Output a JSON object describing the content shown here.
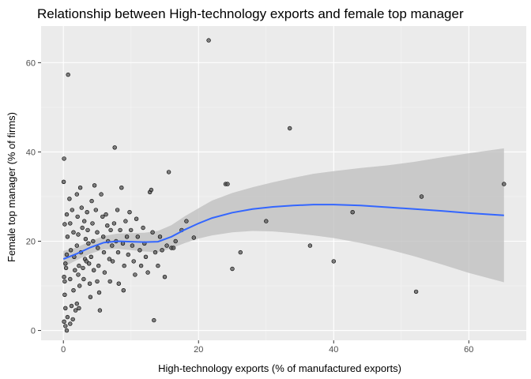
{
  "chart_data": {
    "type": "scatter",
    "title": "Relationship between  High-technology exports and female top manager",
    "xlabel": "High-technology exports (% of manufactured exports)",
    "ylabel": "Female top manager (% of firms)",
    "xlim": [
      -3.3,
      68.5
    ],
    "ylim": [
      -2.2,
      68.2
    ],
    "x_ticks": [
      0,
      20,
      40,
      60
    ],
    "y_ticks": [
      0,
      20,
      40,
      60
    ],
    "grid": true,
    "colors": {
      "panel": "#ebebeb",
      "grid_major": "#ffffff",
      "grid_minor": "#f5f5f5",
      "point_fill": "#595959",
      "point_stroke": "#000000",
      "smooth_line": "#3366ff",
      "ribbon": "#bdbdbd"
    },
    "points": [
      {
        "x": 0.05,
        "y": 33.3
      },
      {
        "x": 0.1,
        "y": 38.5
      },
      {
        "x": 0.2,
        "y": 23.8
      },
      {
        "x": 0.3,
        "y": 15.0
      },
      {
        "x": 0.1,
        "y": 12.0
      },
      {
        "x": 0.2,
        "y": 11.0
      },
      {
        "x": 0.2,
        "y": 8.0
      },
      {
        "x": 0.3,
        "y": 5.0
      },
      {
        "x": 0.1,
        "y": 2.0
      },
      {
        "x": 0.3,
        "y": 1.0
      },
      {
        "x": 0.5,
        "y": 0.0
      },
      {
        "x": 0.6,
        "y": 3.0
      },
      {
        "x": 0.4,
        "y": 14.0
      },
      {
        "x": 0.5,
        "y": 17.0
      },
      {
        "x": 0.6,
        "y": 21.0
      },
      {
        "x": 0.5,
        "y": 26.0
      },
      {
        "x": 0.7,
        "y": 57.3
      },
      {
        "x": 0.9,
        "y": 29.5
      },
      {
        "x": 1.0,
        "y": 24.0
      },
      {
        "x": 1.1,
        "y": 18.0
      },
      {
        "x": 1.0,
        "y": 11.5
      },
      {
        "x": 1.2,
        "y": 5.5
      },
      {
        "x": 1.0,
        "y": 1.5
      },
      {
        "x": 1.3,
        "y": 27.0
      },
      {
        "x": 1.5,
        "y": 22.0
      },
      {
        "x": 1.6,
        "y": 16.5
      },
      {
        "x": 1.7,
        "y": 13.5
      },
      {
        "x": 1.5,
        "y": 9.0
      },
      {
        "x": 1.8,
        "y": 4.5
      },
      {
        "x": 1.4,
        "y": 2.5
      },
      {
        "x": 2.0,
        "y": 30.5
      },
      {
        "x": 2.1,
        "y": 25.5
      },
      {
        "x": 2.2,
        "y": 21.5
      },
      {
        "x": 2.0,
        "y": 19.0
      },
      {
        "x": 2.3,
        "y": 14.5
      },
      {
        "x": 2.2,
        "y": 12.5
      },
      {
        "x": 2.4,
        "y": 10.0
      },
      {
        "x": 2.0,
        "y": 6.0
      },
      {
        "x": 2.3,
        "y": 5.0
      },
      {
        "x": 2.5,
        "y": 32.0
      },
      {
        "x": 2.7,
        "y": 27.5
      },
      {
        "x": 2.8,
        "y": 23.0
      },
      {
        "x": 2.6,
        "y": 17.5
      },
      {
        "x": 2.9,
        "y": 14.0
      },
      {
        "x": 3.0,
        "y": 11.5
      },
      {
        "x": 3.1,
        "y": 24.5
      },
      {
        "x": 3.3,
        "y": 20.5
      },
      {
        "x": 3.2,
        "y": 16.0
      },
      {
        "x": 3.4,
        "y": 15.5
      },
      {
        "x": 3.5,
        "y": 26.5
      },
      {
        "x": 3.6,
        "y": 22.5
      },
      {
        "x": 3.7,
        "y": 19.5
      },
      {
        "x": 3.8,
        "y": 15.0
      },
      {
        "x": 3.9,
        "y": 10.5
      },
      {
        "x": 4.0,
        "y": 7.5
      },
      {
        "x": 4.2,
        "y": 29.0
      },
      {
        "x": 4.3,
        "y": 24.0
      },
      {
        "x": 4.4,
        "y": 20.0
      },
      {
        "x": 4.1,
        "y": 16.5
      },
      {
        "x": 4.5,
        "y": 13.5
      },
      {
        "x": 4.6,
        "y": 32.5
      },
      {
        "x": 4.8,
        "y": 27.0
      },
      {
        "x": 5.0,
        "y": 22.0
      },
      {
        "x": 5.1,
        "y": 18.5
      },
      {
        "x": 5.2,
        "y": 14.5
      },
      {
        "x": 5.0,
        "y": 11.0
      },
      {
        "x": 5.3,
        "y": 8.5
      },
      {
        "x": 5.4,
        "y": 4.5
      },
      {
        "x": 5.6,
        "y": 30.5
      },
      {
        "x": 5.8,
        "y": 25.5
      },
      {
        "x": 5.9,
        "y": 21.0
      },
      {
        "x": 6.0,
        "y": 17.5
      },
      {
        "x": 6.1,
        "y": 13.0
      },
      {
        "x": 6.3,
        "y": 26.0
      },
      {
        "x": 6.5,
        "y": 23.5
      },
      {
        "x": 6.6,
        "y": 20.0
      },
      {
        "x": 6.8,
        "y": 16.0
      },
      {
        "x": 6.9,
        "y": 11.0
      },
      {
        "x": 7.0,
        "y": 22.5
      },
      {
        "x": 7.2,
        "y": 19.0
      },
      {
        "x": 7.3,
        "y": 15.5
      },
      {
        "x": 7.5,
        "y": 24.0
      },
      {
        "x": 7.6,
        "y": 41.0
      },
      {
        "x": 7.8,
        "y": 20.0
      },
      {
        "x": 8.0,
        "y": 27.0
      },
      {
        "x": 8.1,
        "y": 17.5
      },
      {
        "x": 8.2,
        "y": 10.5
      },
      {
        "x": 8.4,
        "y": 22.5
      },
      {
        "x": 8.6,
        "y": 32.0
      },
      {
        "x": 8.8,
        "y": 19.5
      },
      {
        "x": 8.9,
        "y": 9.0
      },
      {
        "x": 9.0,
        "y": 14.5
      },
      {
        "x": 9.2,
        "y": 24.5
      },
      {
        "x": 9.4,
        "y": 21.0
      },
      {
        "x": 9.6,
        "y": 17.0
      },
      {
        "x": 9.8,
        "y": 26.5
      },
      {
        "x": 10.0,
        "y": 22.5
      },
      {
        "x": 10.2,
        "y": 19.0
      },
      {
        "x": 10.4,
        "y": 15.5
      },
      {
        "x": 10.6,
        "y": 12.5
      },
      {
        "x": 10.8,
        "y": 25.0
      },
      {
        "x": 11.0,
        "y": 21.0
      },
      {
        "x": 11.3,
        "y": 18.0
      },
      {
        "x": 11.5,
        "y": 14.5
      },
      {
        "x": 11.8,
        "y": 23.0
      },
      {
        "x": 12.0,
        "y": 19.5
      },
      {
        "x": 12.2,
        "y": 16.5
      },
      {
        "x": 12.5,
        "y": 13.0
      },
      {
        "x": 12.8,
        "y": 31.0
      },
      {
        "x": 13.0,
        "y": 31.5
      },
      {
        "x": 13.2,
        "y": 22.0
      },
      {
        "x": 13.4,
        "y": 2.3
      },
      {
        "x": 13.6,
        "y": 17.5
      },
      {
        "x": 14.0,
        "y": 14.5
      },
      {
        "x": 14.3,
        "y": 21.0
      },
      {
        "x": 14.6,
        "y": 18.0
      },
      {
        "x": 15.0,
        "y": 12.0
      },
      {
        "x": 15.3,
        "y": 19.0
      },
      {
        "x": 15.6,
        "y": 35.5
      },
      {
        "x": 16.0,
        "y": 18.5
      },
      {
        "x": 16.3,
        "y": 18.5
      },
      {
        "x": 16.6,
        "y": 20.0
      },
      {
        "x": 17.5,
        "y": 22.5
      },
      {
        "x": 18.2,
        "y": 24.5
      },
      {
        "x": 19.3,
        "y": 20.8
      },
      {
        "x": 21.5,
        "y": 65.0
      },
      {
        "x": 24.0,
        "y": 32.8
      },
      {
        "x": 24.3,
        "y": 32.8
      },
      {
        "x": 25.0,
        "y": 13.8
      },
      {
        "x": 26.2,
        "y": 17.5
      },
      {
        "x": 30.0,
        "y": 24.5
      },
      {
        "x": 33.5,
        "y": 45.3
      },
      {
        "x": 36.5,
        "y": 19.0
      },
      {
        "x": 40.0,
        "y": 15.5
      },
      {
        "x": 42.8,
        "y": 26.5
      },
      {
        "x": 52.2,
        "y": 8.7
      },
      {
        "x": 53.0,
        "y": 30.0
      },
      {
        "x": 65.2,
        "y": 32.8
      }
    ],
    "smooth": [
      {
        "x": 0,
        "y": 16.0,
        "lo": 14.2,
        "hi": 17.8
      },
      {
        "x": 2,
        "y": 17.2,
        "lo": 15.8,
        "hi": 18.6
      },
      {
        "x": 4,
        "y": 18.6,
        "lo": 17.2,
        "hi": 20.0
      },
      {
        "x": 6,
        "y": 19.7,
        "lo": 18.2,
        "hi": 21.2
      },
      {
        "x": 8,
        "y": 20.0,
        "lo": 18.3,
        "hi": 21.7
      },
      {
        "x": 10,
        "y": 19.9,
        "lo": 18.0,
        "hi": 21.8
      },
      {
        "x": 12,
        "y": 19.8,
        "lo": 17.7,
        "hi": 21.9
      },
      {
        "x": 14,
        "y": 19.9,
        "lo": 17.5,
        "hi": 22.3
      },
      {
        "x": 16,
        "y": 21.0,
        "lo": 18.4,
        "hi": 23.6
      },
      {
        "x": 18,
        "y": 22.6,
        "lo": 19.6,
        "hi": 25.6
      },
      {
        "x": 20,
        "y": 24.0,
        "lo": 20.6,
        "hi": 27.4
      },
      {
        "x": 22,
        "y": 25.2,
        "lo": 21.3,
        "hi": 29.1
      },
      {
        "x": 25,
        "y": 26.4,
        "lo": 22.0,
        "hi": 30.8
      },
      {
        "x": 28,
        "y": 27.2,
        "lo": 22.3,
        "hi": 32.1
      },
      {
        "x": 31,
        "y": 27.7,
        "lo": 22.2,
        "hi": 33.2
      },
      {
        "x": 34,
        "y": 28.0,
        "lo": 21.8,
        "hi": 34.2
      },
      {
        "x": 37,
        "y": 28.2,
        "lo": 21.3,
        "hi": 35.1
      },
      {
        "x": 40,
        "y": 28.2,
        "lo": 20.7,
        "hi": 35.7
      },
      {
        "x": 44,
        "y": 28.0,
        "lo": 19.6,
        "hi": 36.4
      },
      {
        "x": 48,
        "y": 27.6,
        "lo": 18.2,
        "hi": 37.0
      },
      {
        "x": 52,
        "y": 27.2,
        "lo": 16.6,
        "hi": 37.8
      },
      {
        "x": 56,
        "y": 26.8,
        "lo": 14.8,
        "hi": 38.8
      },
      {
        "x": 60,
        "y": 26.3,
        "lo": 12.9,
        "hi": 39.7
      },
      {
        "x": 65.2,
        "y": 25.8,
        "lo": 10.8,
        "hi": 40.8
      }
    ]
  }
}
